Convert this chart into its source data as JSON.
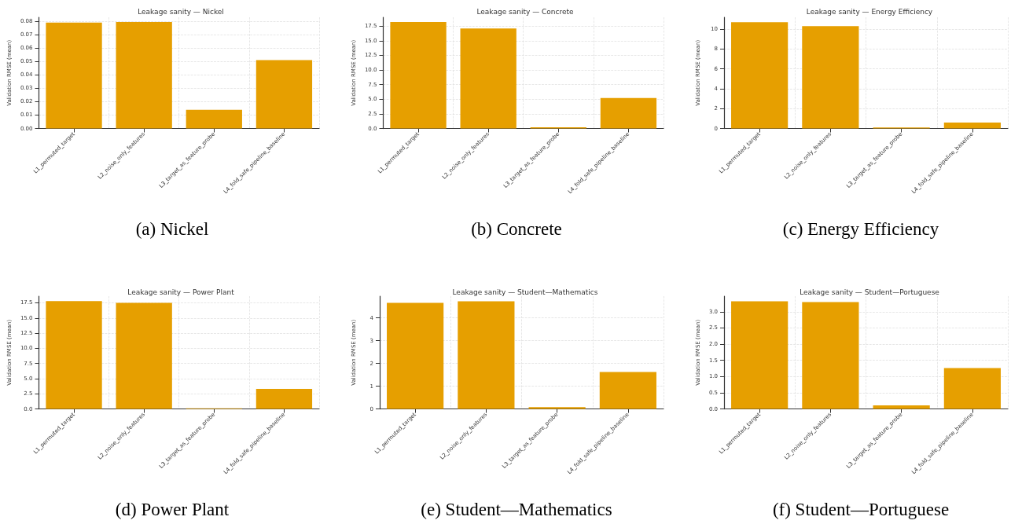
{
  "chart_data": [
    {
      "type": "bar",
      "title": "Leakage sanity — Nickel",
      "ylabel": "Validation RMSE (mean)",
      "annotations": [
        "(a) Nickel"
      ],
      "categories": [
        "L1_permuted_target",
        "L2_noise_only_features",
        "L3_target_as_feature_probe",
        "L4_fold_safe_pipeline_baseline"
      ],
      "values": [
        0.079,
        0.0795,
        0.014,
        0.051
      ],
      "color": "#e69f00",
      "ylim": [
        0,
        0.083
      ],
      "yticks": [
        {
          "value": 0,
          "label": "0.00"
        },
        {
          "value": 0.01,
          "label": "0.01"
        },
        {
          "value": 0.02,
          "label": "0.02"
        },
        {
          "value": 0.03,
          "label": "0.03"
        },
        {
          "value": 0.04,
          "label": "0.04"
        },
        {
          "value": 0.05,
          "label": "0.05"
        },
        {
          "value": 0.06,
          "label": "0.06"
        },
        {
          "value": 0.07,
          "label": "0.07"
        },
        {
          "value": 0.08,
          "label": "0.08"
        }
      ],
      "grid": true
    },
    {
      "type": "bar",
      "title": "Leakage sanity — Concrete",
      "ylabel": "Validation RMSE (mean)",
      "annotations": [
        "(b) Concrete"
      ],
      "categories": [
        "L1_permuted_target",
        "L2_noise_only_features",
        "L3_target_as_feature_probe",
        "L4_fold_safe_pipeline_baseline"
      ],
      "values": [
        18.2,
        17.1,
        0.2,
        5.2
      ],
      "color": "#e69f00",
      "ylim": [
        0,
        19
      ],
      "yticks": [
        {
          "value": 0,
          "label": "0.0"
        },
        2.5,
        {
          "value": 5,
          "label": "5.0"
        },
        7.5,
        {
          "value": 10,
          "label": "10.0"
        },
        12.5,
        {
          "value": 15,
          "label": "15.0"
        },
        17.5
      ],
      "grid": true
    },
    {
      "type": "bar",
      "title": "Leakage sanity — Energy Efficiency",
      "ylabel": "Validation RMSE (mean)",
      "annotations": [
        "(c) Energy Efficiency"
      ],
      "categories": [
        "L1_permuted_target",
        "L2_noise_only_features",
        "L3_target_as_feature_probe",
        "L4_fold_safe_pipeline_baseline"
      ],
      "values": [
        10.7,
        10.3,
        0.1,
        0.6
      ],
      "color": "#e69f00",
      "ylim": [
        0,
        11.2
      ],
      "yticks": [
        0,
        2,
        4,
        6,
        8,
        10
      ],
      "grid": true
    },
    {
      "type": "bar",
      "title": "Leakage sanity — Power Plant",
      "ylabel": "Validation RMSE (mean)",
      "annotations": [
        "(d) Power Plant"
      ],
      "categories": [
        "L1_permuted_target",
        "L2_noise_only_features",
        "L3_target_as_feature_probe",
        "L4_fold_safe_pipeline_baseline"
      ],
      "values": [
        17.8,
        17.5,
        0.1,
        3.3
      ],
      "color": "#e69f00",
      "ylim": [
        0,
        18.6
      ],
      "yticks": [
        {
          "value": 0,
          "label": "0.0"
        },
        2.5,
        {
          "value": 5,
          "label": "5.0"
        },
        7.5,
        {
          "value": 10,
          "label": "10.0"
        },
        12.5,
        {
          "value": 15,
          "label": "15.0"
        },
        17.5
      ],
      "grid": true
    },
    {
      "type": "bar",
      "title": "Leakage sanity — Student—Mathematics",
      "ylabel": "Validation RMSE (mean)",
      "annotations": [
        "(e) Student—Mathematics"
      ],
      "categories": [
        "L1_permuted_target",
        "L2_noise_only_features",
        "L3_target_as_feature_probe",
        "L4_fold_safe_pipeline_baseline"
      ],
      "values": [
        4.66,
        4.73,
        0.08,
        1.62
      ],
      "color": "#e69f00",
      "ylim": [
        0,
        4.95
      ],
      "yticks": [
        0,
        1,
        2,
        3,
        4
      ],
      "grid": true
    },
    {
      "type": "bar",
      "title": "Leakage sanity — Student—Portuguese",
      "ylabel": "Validation RMSE (mean)",
      "annotations": [
        "(f) Student—Portuguese"
      ],
      "categories": [
        "L1_permuted_target",
        "L2_noise_only_features",
        "L3_target_as_feature_probe",
        "L4_fold_safe_pipeline_baseline"
      ],
      "values": [
        3.32,
        3.3,
        0.11,
        1.26
      ],
      "color": "#e69f00",
      "ylim": [
        0,
        3.48
      ],
      "yticks": [
        {
          "value": 0,
          "label": "0.0"
        },
        0.5,
        {
          "value": 1,
          "label": "1.0"
        },
        1.5,
        {
          "value": 2,
          "label": "2.0"
        },
        2.5,
        {
          "value": 3,
          "label": "3.0"
        }
      ],
      "grid": true
    }
  ]
}
